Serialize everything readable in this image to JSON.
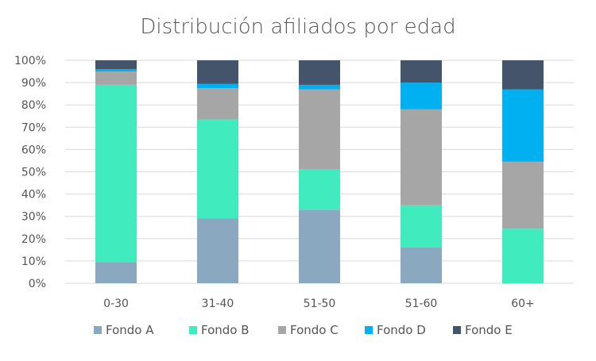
{
  "chart_data": {
    "type": "bar",
    "stacked": true,
    "percent": true,
    "title": "Distribución afiliados por edad",
    "xlabel": "",
    "ylabel": "",
    "ylim": [
      0,
      100
    ],
    "yticks": [
      "0%",
      "10%",
      "20%",
      "30%",
      "40%",
      "50%",
      "60%",
      "70%",
      "80%",
      "90%",
      "100%"
    ],
    "categories": [
      "0-30",
      "31-40",
      "51-50",
      "51-60",
      "60+"
    ],
    "series": [
      {
        "name": "Fondo A",
        "color": "#8aa8c0",
        "values": [
          9.5,
          29,
          33,
          16,
          0
        ]
      },
      {
        "name": "Fondo B",
        "color": "#40ecbe",
        "values": [
          79.5,
          44.5,
          18,
          19,
          24.5
        ]
      },
      {
        "name": "Fondo C",
        "color": "#a6a6a6",
        "values": [
          6,
          14,
          36,
          43,
          30
        ]
      },
      {
        "name": "Fondo D",
        "color": "#00b0f0",
        "values": [
          1,
          2,
          2,
          12,
          32.5
        ]
      },
      {
        "name": "Fondo E",
        "color": "#44546a",
        "values": [
          4,
          10.5,
          11,
          10,
          13
        ]
      }
    ],
    "grid": true,
    "legend": "bottom"
  }
}
